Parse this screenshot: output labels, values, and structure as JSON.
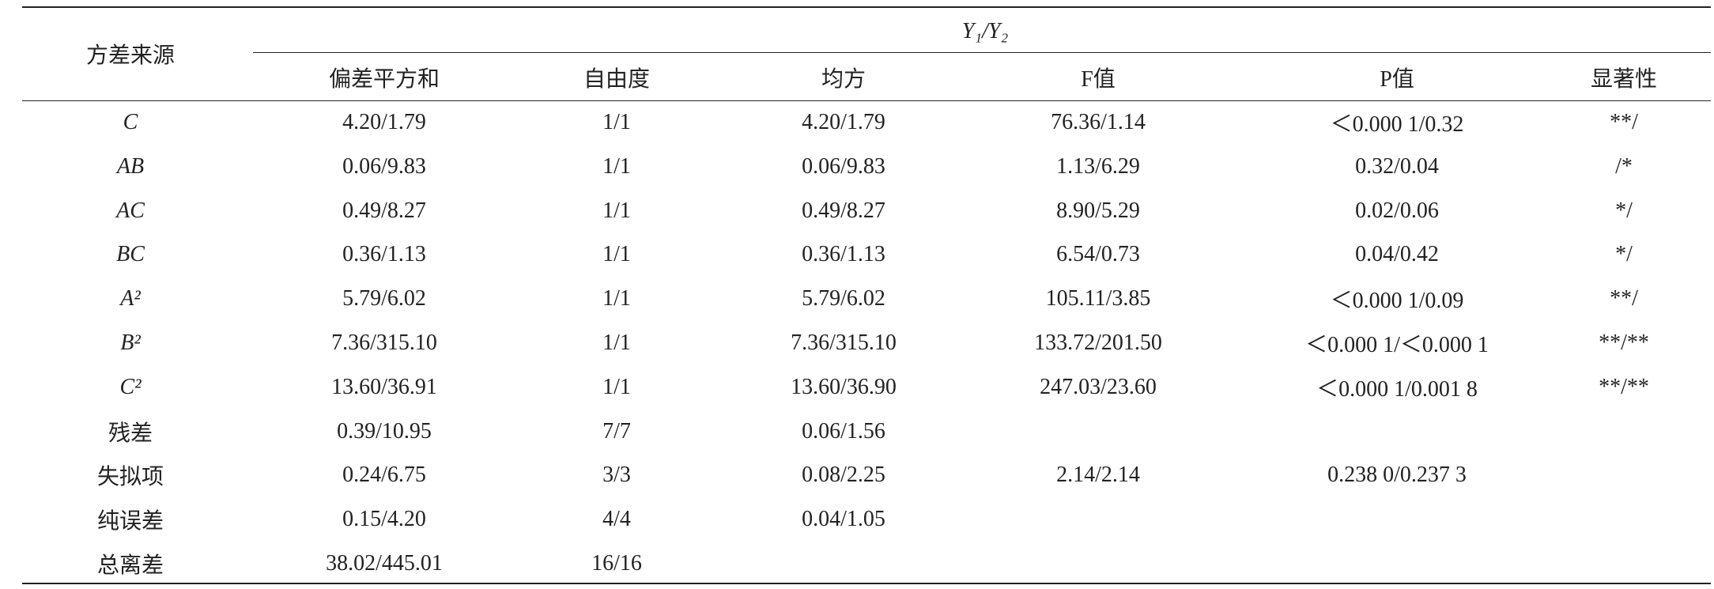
{
  "table": {
    "source_label": "方差来源",
    "group_label": "Y₁/Y₂",
    "columns": [
      "偏差平方和",
      "自由度",
      "均方",
      "F值",
      "P值",
      "显著性"
    ],
    "rows": [
      [
        "C",
        "4.20/1.79",
        "1/1",
        "4.20/1.79",
        "76.36/1.14",
        "＜0.000 1/0.32",
        "**/"
      ],
      [
        "AB",
        "0.06/9.83",
        "1/1",
        "0.06/9.83",
        "1.13/6.29",
        "0.32/0.04",
        "/*"
      ],
      [
        "AC",
        "0.49/8.27",
        "1/1",
        "0.49/8.27",
        "8.90/5.29",
        "0.02/0.06",
        "*/"
      ],
      [
        "BC",
        "0.36/1.13",
        "1/1",
        "0.36/1.13",
        "6.54/0.73",
        "0.04/0.42",
        "*/"
      ],
      [
        "A²",
        "5.79/6.02",
        "1/1",
        "5.79/6.02",
        "105.11/3.85",
        "＜0.000 1/0.09",
        "**/"
      ],
      [
        "B²",
        "7.36/315.10",
        "1/1",
        "7.36/315.10",
        "133.72/201.50",
        "＜0.000 1/＜0.000 1",
        "**/**"
      ],
      [
        "C²",
        "13.60/36.91",
        "1/1",
        "13.60/36.90",
        "247.03/23.60",
        "＜0.000 1/0.001 8",
        "**/**"
      ],
      [
        "残差",
        "0.39/10.95",
        "7/7",
        "0.06/1.56",
        null,
        null,
        null
      ],
      [
        "失拟项",
        "0.24/6.75",
        "3/3",
        "0.08/2.25",
        "2.14/2.14",
        "0.238 0/0.237 3",
        null
      ],
      [
        "纯误差",
        "0.15/4.20",
        "4/4",
        "0.04/1.05",
        null,
        null,
        null
      ],
      [
        "总离差",
        "38.02/445.01",
        "16/16",
        null,
        null,
        null,
        null
      ]
    ]
  }
}
